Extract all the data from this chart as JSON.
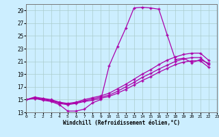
{
  "xlabel": "Windchill (Refroidissement éolien,°C)",
  "bg_color": "#cceeff",
  "grid_color": "#aacccc",
  "line_color": "#aa00aa",
  "xlim": [
    0,
    23
  ],
  "ylim": [
    13,
    30
  ],
  "yticks": [
    13,
    15,
    17,
    19,
    21,
    23,
    25,
    27,
    29
  ],
  "xticks": [
    0,
    1,
    2,
    3,
    4,
    5,
    6,
    7,
    8,
    9,
    10,
    11,
    12,
    13,
    14,
    15,
    16,
    17,
    18,
    19,
    20,
    21,
    22,
    23
  ],
  "series": [
    {
      "x": [
        0,
        1,
        2,
        3,
        4,
        5,
        6,
        7,
        8,
        9,
        10,
        11,
        12,
        13,
        14,
        15,
        16,
        17,
        18,
        19,
        20,
        21,
        22
      ],
      "y": [
        15.0,
        15.2,
        14.9,
        14.7,
        14.2,
        13.2,
        13.2,
        13.5,
        14.5,
        15.0,
        20.3,
        23.3,
        26.2,
        29.4,
        29.5,
        29.4,
        29.2,
        25.2,
        21.3,
        21.5,
        20.8,
        21.3,
        20.7
      ]
    },
    {
      "x": [
        0,
        1,
        2,
        3,
        4,
        5,
        6,
        7,
        8,
        9,
        10,
        11,
        12,
        13,
        14,
        15,
        16,
        17,
        18,
        19,
        20,
        21,
        22
      ],
      "y": [
        15.0,
        15.4,
        15.2,
        15.0,
        14.6,
        14.4,
        14.6,
        15.0,
        15.3,
        15.6,
        16.0,
        16.7,
        17.4,
        18.2,
        19.0,
        19.7,
        20.5,
        21.2,
        21.7,
        22.1,
        22.3,
        22.3,
        21.2
      ]
    },
    {
      "x": [
        0,
        1,
        2,
        3,
        4,
        5,
        6,
        7,
        8,
        9,
        10,
        11,
        12,
        13,
        14,
        15,
        16,
        17,
        18,
        19,
        20,
        21,
        22
      ],
      "y": [
        15.0,
        15.3,
        15.1,
        14.9,
        14.5,
        14.3,
        14.5,
        14.8,
        15.1,
        15.4,
        15.7,
        16.3,
        17.0,
        17.7,
        18.5,
        19.1,
        19.8,
        20.4,
        21.0,
        21.4,
        21.6,
        21.6,
        20.5
      ]
    },
    {
      "x": [
        0,
        1,
        2,
        3,
        4,
        5,
        6,
        7,
        8,
        9,
        10,
        11,
        12,
        13,
        14,
        15,
        16,
        17,
        18,
        19,
        20,
        21,
        22
      ],
      "y": [
        15.0,
        15.2,
        15.0,
        14.8,
        14.4,
        14.2,
        14.4,
        14.7,
        14.9,
        15.2,
        15.5,
        16.0,
        16.6,
        17.3,
        18.0,
        18.6,
        19.3,
        19.9,
        20.5,
        20.9,
        21.1,
        21.1,
        20.1
      ]
    }
  ]
}
